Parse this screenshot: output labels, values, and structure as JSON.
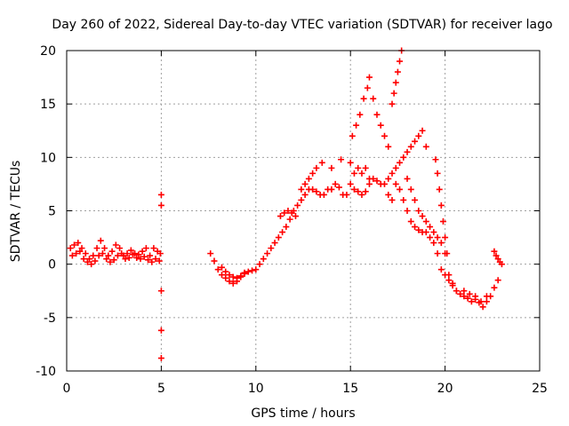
{
  "chart_data": {
    "type": "scatter",
    "title": "Day 260 of 2022, Sidereal Day-to-day VTEC variation (SDTVAR) for receiver lago",
    "xlabel": "GPS time / hours",
    "ylabel": "SDTVAR / TECUs",
    "xlim": [
      0,
      25
    ],
    "ylim": [
      -10,
      20
    ],
    "xticks": [
      0,
      5,
      10,
      15,
      20,
      25
    ],
    "yticks": [
      -10,
      -5,
      0,
      5,
      10,
      15,
      20
    ],
    "grid": true,
    "marker": "+",
    "series": [
      {
        "name": "SDTVAR",
        "color": "#ff0000",
        "segments": [
          {
            "x": [
              0.2,
              0.4,
              0.6,
              0.8,
              1.0,
              1.2,
              1.4,
              1.6,
              1.8,
              2.0,
              2.2,
              2.4,
              2.6,
              2.8,
              3.0,
              3.2,
              3.4,
              3.6,
              3.8,
              4.0,
              4.2,
              4.4,
              4.6,
              4.8,
              4.95
            ],
            "y": [
              1.5,
              1.8,
              2.0,
              1.5,
              1.0,
              0.5,
              0.8,
              1.5,
              2.2,
              1.5,
              0.8,
              1.2,
              1.8,
              1.5,
              0.8,
              1.0,
              1.3,
              1.0,
              0.9,
              1.2,
              1.5,
              0.8,
              1.5,
              1.2,
              1.0
            ]
          },
          {
            "x": [
              0.3,
              0.5,
              0.7,
              0.9,
              1.1,
              1.3,
              1.5,
              1.7,
              1.9,
              2.1,
              2.3,
              2.5,
              2.7,
              2.9,
              3.1,
              3.3,
              3.5,
              3.7,
              3.9,
              4.1,
              4.3,
              4.5,
              4.7,
              4.9
            ],
            "y": [
              0.8,
              1.0,
              1.2,
              0.5,
              0.2,
              0.0,
              0.3,
              0.8,
              1.0,
              0.5,
              0.2,
              0.4,
              0.8,
              1.0,
              0.5,
              0.6,
              0.9,
              0.6,
              0.5,
              0.7,
              0.4,
              0.2,
              0.5,
              0.3
            ]
          },
          {
            "x": [
              5.0,
              5.0,
              5.0,
              5.0,
              5.0
            ],
            "y": [
              6.5,
              5.5,
              -2.5,
              -6.2,
              -8.8
            ]
          },
          {
            "x": [
              7.6,
              7.8,
              8.0,
              8.2,
              8.4,
              8.6,
              8.8,
              9.0,
              9.2,
              9.4,
              9.6,
              9.8,
              10.0
            ],
            "y": [
              1.0,
              0.3,
              -0.5,
              -1.0,
              -1.3,
              -1.6,
              -1.8,
              -1.6,
              -1.2,
              -0.9,
              -0.7,
              -0.6,
              -0.5
            ]
          },
          {
            "x": [
              8.2,
              8.4,
              8.6,
              8.8,
              9.0,
              9.2,
              9.4
            ],
            "y": [
              -0.3,
              -0.7,
              -1.0,
              -1.2,
              -1.3,
              -1.1,
              -0.8
            ]
          },
          {
            "x": [
              10.2,
              10.4,
              10.6,
              10.8,
              11.0,
              11.2,
              11.4,
              11.6,
              11.8,
              12.0,
              12.2,
              12.4,
              12.6,
              12.8,
              13.0,
              13.2,
              13.4,
              13.6,
              13.8,
              14.0,
              14.2,
              14.4,
              14.6,
              14.8,
              15.0,
              15.2,
              15.4,
              15.6,
              15.8,
              16.0
            ],
            "y": [
              0.0,
              0.5,
              1.0,
              1.5,
              2.0,
              2.5,
              3.0,
              3.5,
              4.2,
              5.0,
              5.5,
              6.0,
              6.5,
              7.0,
              7.0,
              6.8,
              6.5,
              6.5,
              7.0,
              7.0,
              7.5,
              7.2,
              6.5,
              6.5,
              7.5,
              8.5,
              9.0,
              8.5,
              9.0,
              8.0
            ]
          },
          {
            "x": [
              11.3,
              11.5,
              11.7,
              11.9,
              12.1
            ],
            "y": [
              4.5,
              4.8,
              5.0,
              4.8,
              4.5
            ]
          },
          {
            "x": [
              12.4,
              12.6,
              12.8,
              13.0,
              13.2
            ],
            "y": [
              7.0,
              7.5,
              8.0,
              8.5,
              9.0
            ]
          },
          {
            "x": [
              13.5,
              14.0,
              14.5,
              15.0
            ],
            "y": [
              9.5,
              9.0,
              9.8,
              9.5
            ]
          },
          {
            "x": [
              15.2,
              15.4,
              15.6,
              15.8,
              16.0,
              16.2,
              16.4,
              16.6,
              16.8,
              17.0,
              17.2,
              17.4,
              17.6,
              17.8,
              18.0,
              18.2,
              18.4,
              18.6,
              18.8,
              19.0,
              19.2,
              19.4,
              19.6,
              19.8,
              20.0,
              20.2,
              20.4,
              20.6
            ],
            "y": [
              7.0,
              6.8,
              6.5,
              6.8,
              7.5,
              8.0,
              7.8,
              7.5,
              7.5,
              6.5,
              6.0,
              7.5,
              7.0,
              6.0,
              5.0,
              4.0,
              3.5,
              3.2,
              3.0,
              3.0,
              2.5,
              2.0,
              1.0,
              -0.5,
              -1.0,
              -1.5,
              -2.0,
              -2.5
            ]
          },
          {
            "x": [
              15.1,
              15.3,
              15.5,
              15.7,
              15.9,
              16.0
            ],
            "y": [
              12.0,
              13.0,
              14.0,
              15.5,
              16.5,
              17.5
            ]
          },
          {
            "x": [
              16.2,
              16.4,
              16.6,
              16.8,
              17.0
            ],
            "y": [
              15.5,
              14.0,
              13.0,
              12.0,
              11.0
            ]
          },
          {
            "x": [
              17.2,
              17.3,
              17.4,
              17.5,
              17.6,
              17.7
            ],
            "y": [
              15.0,
              16.0,
              17.0,
              18.0,
              19.0,
              20.0
            ]
          },
          {
            "x": [
              17.0,
              17.2,
              17.4,
              17.6,
              17.8,
              18.0,
              18.2,
              18.4,
              18.6,
              18.8,
              19.0
            ],
            "y": [
              8.0,
              8.5,
              9.0,
              9.5,
              10.0,
              10.5,
              11.0,
              11.5,
              12.0,
              12.5,
              11.0
            ]
          },
          {
            "x": [
              18.0,
              18.2,
              18.4,
              18.6,
              18.8,
              19.0,
              19.2,
              19.4,
              19.6,
              19.8,
              20.0
            ],
            "y": [
              8.0,
              7.0,
              6.0,
              5.0,
              4.5,
              4.0,
              3.5,
              3.0,
              2.5,
              2.0,
              1.0
            ]
          },
          {
            "x": [
              19.5,
              19.6,
              19.7,
              19.8,
              19.9,
              20.0,
              20.1
            ],
            "y": [
              9.8,
              8.5,
              7.0,
              5.5,
              4.0,
              2.5,
              1.0
            ]
          },
          {
            "x": [
              20.2,
              20.4,
              20.6,
              20.8,
              21.0,
              21.2,
              21.4,
              21.6,
              21.8,
              22.0,
              22.2,
              22.4,
              22.6,
              22.8
            ],
            "y": [
              -1.0,
              -1.8,
              -2.5,
              -2.8,
              -3.0,
              -3.2,
              -3.5,
              -3.3,
              -3.6,
              -4.0,
              -3.5,
              -3.0,
              -2.2,
              -1.5
            ]
          },
          {
            "x": [
              22.6,
              22.7,
              22.8,
              22.9,
              23.0
            ],
            "y": [
              1.2,
              0.8,
              0.5,
              0.2,
              0.0
            ]
          },
          {
            "x": [
              21.0,
              21.3,
              21.6,
              21.9,
              22.2
            ],
            "y": [
              -2.5,
              -2.8,
              -3.0,
              -3.5,
              -3.0
            ]
          }
        ]
      }
    ]
  }
}
